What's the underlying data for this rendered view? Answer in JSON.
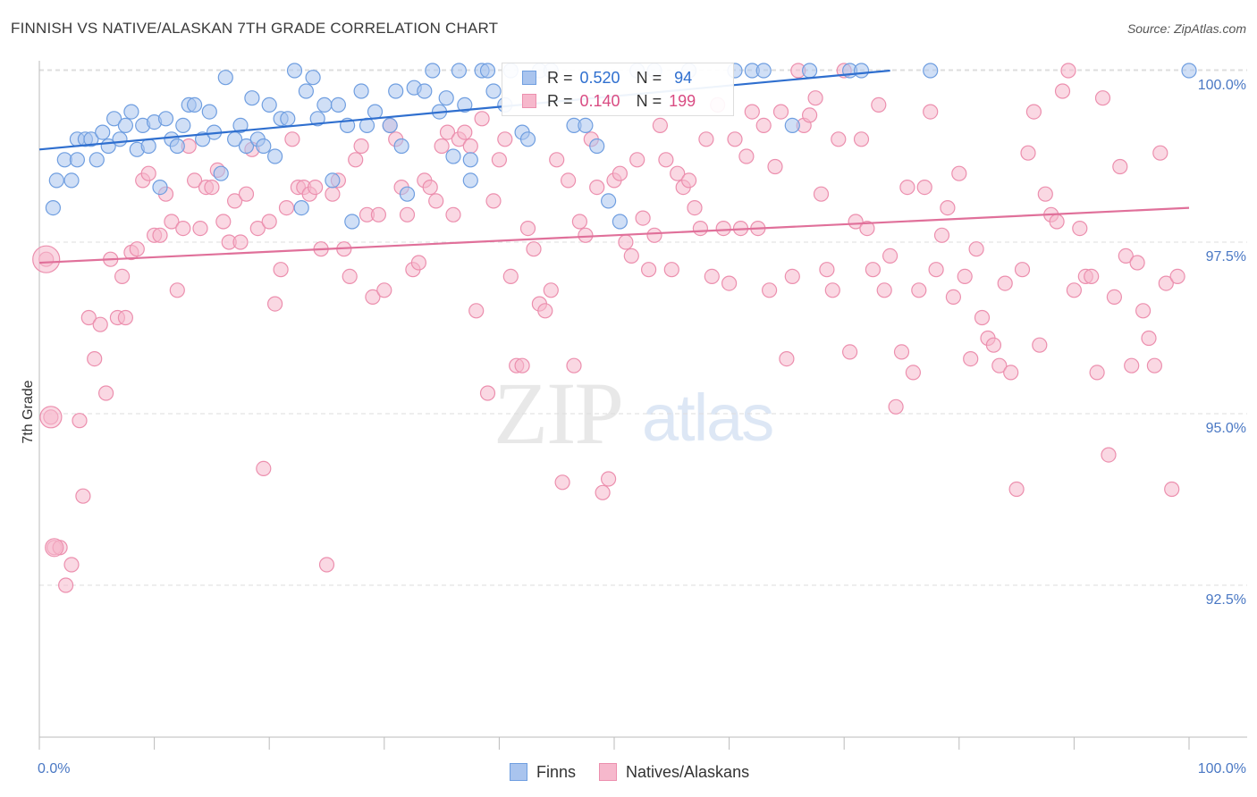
{
  "title": "FINNISH VS NATIVE/ALASKAN 7TH GRADE CORRELATION CHART",
  "source": "Source: ZipAtlas.com",
  "watermark": {
    "zip": "ZIP",
    "atlas": "atlas"
  },
  "colors": {
    "finns_fill": "#a9c4ee",
    "finns_stroke": "#6f9ee0",
    "finns_line": "#2f6fcf",
    "natives_fill": "#f6b8cc",
    "natives_stroke": "#ec8fae",
    "natives_line": "#e0709a",
    "grid": "#dedede",
    "tick_label": "#4a78c4"
  },
  "legend_stats": {
    "finns": {
      "r_label": "R =",
      "r_value": "0.520",
      "n_label": "N =",
      "n_value": "94"
    },
    "natives": {
      "r_label": "R =",
      "r_value": "0.140",
      "n_label": "N =",
      "n_value": "199"
    }
  },
  "chart_data": {
    "type": "scatter",
    "title": "FINNISH VS NATIVE/ALASKAN 7TH GRADE CORRELATION CHART",
    "xlabel": "",
    "ylabel": "7th Grade",
    "xlim": [
      0,
      100
    ],
    "ylim": [
      90.0,
      100.3
    ],
    "x_tick_labels": [
      "0.0%",
      "100.0%"
    ],
    "y_ticks": [
      {
        "value": 100.0,
        "label": "100.0%"
      },
      {
        "value": 97.5,
        "label": "97.5%"
      },
      {
        "value": 95.0,
        "label": "95.0%"
      },
      {
        "value": 92.5,
        "label": "92.5%"
      }
    ],
    "grid": true,
    "legend_position": "bottom",
    "series": [
      {
        "name": "Finns",
        "r": 0.52,
        "n": 94,
        "trend": {
          "x": [
            0,
            74
          ],
          "y": [
            98.85,
            100.0
          ]
        },
        "points": [
          [
            1.2,
            98.0
          ],
          [
            1.5,
            98.4
          ],
          [
            2.2,
            98.7
          ],
          [
            2.8,
            98.4
          ],
          [
            3.3,
            98.7
          ],
          [
            3.3,
            99.0
          ],
          [
            4.0,
            99.0
          ],
          [
            4.5,
            99.0
          ],
          [
            5.0,
            98.7
          ],
          [
            5.5,
            99.1
          ],
          [
            6.0,
            98.9
          ],
          [
            6.5,
            99.3
          ],
          [
            7.0,
            99.0
          ],
          [
            7.5,
            99.2
          ],
          [
            8.0,
            99.4
          ],
          [
            8.5,
            98.85
          ],
          [
            9.0,
            99.2
          ],
          [
            9.5,
            98.9
          ],
          [
            10.0,
            99.25
          ],
          [
            10.5,
            98.3
          ],
          [
            11.0,
            99.3
          ],
          [
            11.5,
            99.0
          ],
          [
            12.0,
            98.9
          ],
          [
            12.5,
            99.2
          ],
          [
            13.0,
            99.5
          ],
          [
            13.5,
            99.5
          ],
          [
            14.2,
            99.0
          ],
          [
            14.8,
            99.4
          ],
          [
            15.2,
            99.1
          ],
          [
            15.8,
            98.5
          ],
          [
            16.2,
            99.9
          ],
          [
            17.0,
            99.0
          ],
          [
            17.5,
            99.2
          ],
          [
            18.0,
            98.9
          ],
          [
            18.5,
            99.6
          ],
          [
            19.0,
            99.0
          ],
          [
            19.5,
            98.9
          ],
          [
            20.0,
            99.5
          ],
          [
            20.5,
            98.75
          ],
          [
            21.0,
            99.3
          ],
          [
            21.6,
            99.3
          ],
          [
            22.2,
            100.0
          ],
          [
            22.8,
            98.0
          ],
          [
            23.2,
            99.7
          ],
          [
            23.8,
            99.9
          ],
          [
            24.2,
            99.3
          ],
          [
            24.8,
            99.5
          ],
          [
            25.5,
            98.4
          ],
          [
            26.0,
            99.5
          ],
          [
            26.8,
            99.2
          ],
          [
            27.2,
            97.8
          ],
          [
            28.0,
            99.7
          ],
          [
            28.5,
            99.2
          ],
          [
            29.2,
            99.4
          ],
          [
            30.5,
            99.2
          ],
          [
            31.0,
            99.7
          ],
          [
            31.5,
            98.9
          ],
          [
            32.0,
            98.2
          ],
          [
            32.6,
            99.75
          ],
          [
            33.5,
            99.7
          ],
          [
            34.2,
            100.0
          ],
          [
            34.8,
            99.4
          ],
          [
            35.4,
            99.6
          ],
          [
            36.0,
            98.75
          ],
          [
            36.5,
            100.0
          ],
          [
            37.0,
            99.5
          ],
          [
            37.5,
            98.7
          ],
          [
            37.5,
            98.4
          ],
          [
            38.5,
            100.0
          ],
          [
            39.0,
            100.0
          ],
          [
            39.5,
            99.7
          ],
          [
            40.5,
            99.5
          ],
          [
            41.0,
            100.0
          ],
          [
            42.0,
            99.1
          ],
          [
            42.5,
            99.0
          ],
          [
            43.5,
            100.0
          ],
          [
            44.5,
            100.0
          ],
          [
            46.5,
            99.2
          ],
          [
            47.5,
            99.2
          ],
          [
            48.5,
            98.9
          ],
          [
            49.5,
            98.1
          ],
          [
            50.5,
            97.8
          ],
          [
            52.0,
            100.0
          ],
          [
            53.5,
            100.0
          ],
          [
            56.5,
            100.0
          ],
          [
            60.5,
            100.0
          ],
          [
            62.0,
            100.0
          ],
          [
            63.0,
            100.0
          ],
          [
            65.5,
            99.2
          ],
          [
            67.0,
            100.0
          ],
          [
            70.5,
            100.0
          ],
          [
            71.5,
            100.0
          ],
          [
            77.5,
            100.0
          ],
          [
            100.0,
            100.0
          ]
        ]
      },
      {
        "name": "Natives/Alaskans",
        "r": 0.14,
        "n": 199,
        "trend": {
          "x": [
            0,
            100
          ],
          "y": [
            97.2,
            98.0
          ]
        },
        "points": [
          [
            0.6,
            97.25
          ],
          [
            1.0,
            94.95
          ],
          [
            1.3,
            93.05
          ],
          [
            1.8,
            93.05
          ],
          [
            2.3,
            92.5
          ],
          [
            2.8,
            92.8
          ],
          [
            3.5,
            94.9
          ],
          [
            3.8,
            93.8
          ],
          [
            4.3,
            96.4
          ],
          [
            4.8,
            95.8
          ],
          [
            5.3,
            96.3
          ],
          [
            5.8,
            95.3
          ],
          [
            6.2,
            97.25
          ],
          [
            6.8,
            96.4
          ],
          [
            7.2,
            97.0
          ],
          [
            7.5,
            96.4
          ],
          [
            8.0,
            97.35
          ],
          [
            8.5,
            97.4
          ],
          [
            9.0,
            98.4
          ],
          [
            9.5,
            98.5
          ],
          [
            10.0,
            97.6
          ],
          [
            10.5,
            97.6
          ],
          [
            11.0,
            98.2
          ],
          [
            11.5,
            97.8
          ],
          [
            12.0,
            96.8
          ],
          [
            12.5,
            97.7
          ],
          [
            13.0,
            98.9
          ],
          [
            13.5,
            98.4
          ],
          [
            14.0,
            97.7
          ],
          [
            14.5,
            98.3
          ],
          [
            15.0,
            98.3
          ],
          [
            15.5,
            98.55
          ],
          [
            16.0,
            97.8
          ],
          [
            16.5,
            97.5
          ],
          [
            17.0,
            98.1
          ],
          [
            17.5,
            97.5
          ],
          [
            18.0,
            98.2
          ],
          [
            18.5,
            98.85
          ],
          [
            19.0,
            97.7
          ],
          [
            19.5,
            94.2
          ],
          [
            20.0,
            97.8
          ],
          [
            20.5,
            96.6
          ],
          [
            21.0,
            97.1
          ],
          [
            21.5,
            98.0
          ],
          [
            22.0,
            99.0
          ],
          [
            22.5,
            98.3
          ],
          [
            23.0,
            98.3
          ],
          [
            23.5,
            98.2
          ],
          [
            24.0,
            98.3
          ],
          [
            24.5,
            97.4
          ],
          [
            25.0,
            92.8
          ],
          [
            25.5,
            98.2
          ],
          [
            26.0,
            98.4
          ],
          [
            26.5,
            97.4
          ],
          [
            27.0,
            97.0
          ],
          [
            27.5,
            98.7
          ],
          [
            28.0,
            98.9
          ],
          [
            28.5,
            97.9
          ],
          [
            29.0,
            96.7
          ],
          [
            29.5,
            97.9
          ],
          [
            30.0,
            96.8
          ],
          [
            30.5,
            99.2
          ],
          [
            31.0,
            99.0
          ],
          [
            31.5,
            98.3
          ],
          [
            32.0,
            97.9
          ],
          [
            32.5,
            97.1
          ],
          [
            33.0,
            97.2
          ],
          [
            33.5,
            98.4
          ],
          [
            34.0,
            98.3
          ],
          [
            34.5,
            98.1
          ],
          [
            35.0,
            98.9
          ],
          [
            35.5,
            99.1
          ],
          [
            36.0,
            97.9
          ],
          [
            36.5,
            99.0
          ],
          [
            37.0,
            99.1
          ],
          [
            37.5,
            98.9
          ],
          [
            38.0,
            96.5
          ],
          [
            38.5,
            99.3
          ],
          [
            39.0,
            95.3
          ],
          [
            39.5,
            98.1
          ],
          [
            40.0,
            98.7
          ],
          [
            40.5,
            99.0
          ],
          [
            41.0,
            97.0
          ],
          [
            41.5,
            95.7
          ],
          [
            42.0,
            95.7
          ],
          [
            42.5,
            97.7
          ],
          [
            43.0,
            97.4
          ],
          [
            43.5,
            96.6
          ],
          [
            44.0,
            96.5
          ],
          [
            44.5,
            96.8
          ],
          [
            45.0,
            98.7
          ],
          [
            45.5,
            94.0
          ],
          [
            46.0,
            98.4
          ],
          [
            46.5,
            95.7
          ],
          [
            47.0,
            97.8
          ],
          [
            47.5,
            97.6
          ],
          [
            48.0,
            99.0
          ],
          [
            48.5,
            98.3
          ],
          [
            49.0,
            93.85
          ],
          [
            49.5,
            94.05
          ],
          [
            50.0,
            98.4
          ],
          [
            50.5,
            98.5
          ],
          [
            51.0,
            97.5
          ],
          [
            51.5,
            97.3
          ],
          [
            52.0,
            98.7
          ],
          [
            52.5,
            97.85
          ],
          [
            53.0,
            97.1
          ],
          [
            53.5,
            97.6
          ],
          [
            54.0,
            99.2
          ],
          [
            54.5,
            98.7
          ],
          [
            55.0,
            97.1
          ],
          [
            55.5,
            98.5
          ],
          [
            56.0,
            98.3
          ],
          [
            56.5,
            98.4
          ],
          [
            57.0,
            98.0
          ],
          [
            57.5,
            97.7
          ],
          [
            58.0,
            99.0
          ],
          [
            58.5,
            97.0
          ],
          [
            59.0,
            99.5
          ],
          [
            59.5,
            97.7
          ],
          [
            60.0,
            96.9
          ],
          [
            60.5,
            99.0
          ],
          [
            61.0,
            97.7
          ],
          [
            61.5,
            98.75
          ],
          [
            62.0,
            99.4
          ],
          [
            62.5,
            97.7
          ],
          [
            63.0,
            99.2
          ],
          [
            63.5,
            96.8
          ],
          [
            64.0,
            98.6
          ],
          [
            64.5,
            99.4
          ],
          [
            65.0,
            95.8
          ],
          [
            65.5,
            97.0
          ],
          [
            66.0,
            100.0
          ],
          [
            66.5,
            99.2
          ],
          [
            67.0,
            99.35
          ],
          [
            67.5,
            99.6
          ],
          [
            68.0,
            98.2
          ],
          [
            68.5,
            97.1
          ],
          [
            69.0,
            96.8
          ],
          [
            69.5,
            99.0
          ],
          [
            70.0,
            100.0
          ],
          [
            70.5,
            95.9
          ],
          [
            71.0,
            97.8
          ],
          [
            71.5,
            99.0
          ],
          [
            72.0,
            97.7
          ],
          [
            72.5,
            97.1
          ],
          [
            73.0,
            99.5
          ],
          [
            73.5,
            96.8
          ],
          [
            74.0,
            97.3
          ],
          [
            74.5,
            95.1
          ],
          [
            75.0,
            95.9
          ],
          [
            75.5,
            98.3
          ],
          [
            76.0,
            95.6
          ],
          [
            76.5,
            96.8
          ],
          [
            77.0,
            98.3
          ],
          [
            77.5,
            99.4
          ],
          [
            78.0,
            97.1
          ],
          [
            78.5,
            97.6
          ],
          [
            79.0,
            98.0
          ],
          [
            79.5,
            96.7
          ],
          [
            80.0,
            98.5
          ],
          [
            80.5,
            97.0
          ],
          [
            81.0,
            95.8
          ],
          [
            81.5,
            97.4
          ],
          [
            82.0,
            96.4
          ],
          [
            82.5,
            96.1
          ],
          [
            83.0,
            96.0
          ],
          [
            83.5,
            95.7
          ],
          [
            84.0,
            96.9
          ],
          [
            84.5,
            95.6
          ],
          [
            85.0,
            93.9
          ],
          [
            85.5,
            97.1
          ],
          [
            86.0,
            98.8
          ],
          [
            86.5,
            99.4
          ],
          [
            87.0,
            96.0
          ],
          [
            87.5,
            98.2
          ],
          [
            88.0,
            97.9
          ],
          [
            88.5,
            97.8
          ],
          [
            89.0,
            99.7
          ],
          [
            89.5,
            100.0
          ],
          [
            90.0,
            96.8
          ],
          [
            90.5,
            97.7
          ],
          [
            91.0,
            97.0
          ],
          [
            91.5,
            97.0
          ],
          [
            92.0,
            95.6
          ],
          [
            92.5,
            99.6
          ],
          [
            93.0,
            94.4
          ],
          [
            93.5,
            96.7
          ],
          [
            94.0,
            98.6
          ],
          [
            94.5,
            97.3
          ],
          [
            95.0,
            95.7
          ],
          [
            95.5,
            97.2
          ],
          [
            96.0,
            96.5
          ],
          [
            96.5,
            96.1
          ],
          [
            97.0,
            95.7
          ],
          [
            97.5,
            98.8
          ],
          [
            98.0,
            96.9
          ],
          [
            98.5,
            93.9
          ],
          [
            99.0,
            97.0
          ]
        ]
      }
    ]
  }
}
